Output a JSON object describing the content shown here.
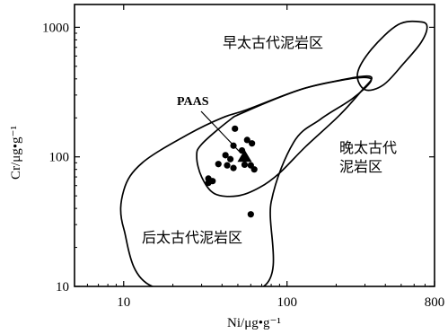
{
  "chart_data": {
    "type": "scatter",
    "xlabel": "Ni/μg•g⁻¹",
    "ylabel": "Cr/μg•g⁻¹",
    "x_scale": "log",
    "y_scale": "log",
    "xlim": [
      5,
      800
    ],
    "ylim": [
      10,
      1500
    ],
    "x_ticks": [
      10,
      100,
      800
    ],
    "x_tick_labels": [
      "10",
      "100",
      "800"
    ],
    "y_ticks": [
      10,
      100,
      1000
    ],
    "y_tick_labels": [
      "10",
      "100",
      "1000"
    ],
    "grid": false,
    "series": [
      {
        "marker": "circle",
        "points": [
          [
            48,
            165
          ],
          [
            57,
            135
          ],
          [
            61,
            127
          ],
          [
            47,
            122
          ],
          [
            53,
            112
          ],
          [
            42,
            103
          ],
          [
            45,
            96
          ],
          [
            38,
            88
          ],
          [
            43,
            86
          ],
          [
            47,
            82
          ],
          [
            55,
            87
          ],
          [
            60,
            86
          ],
          [
            63,
            80
          ],
          [
            33,
            68
          ],
          [
            35,
            65
          ],
          [
            33,
            63
          ],
          [
            60,
            36
          ]
        ]
      },
      {
        "name": "PAAS",
        "marker": "triangle",
        "points": [
          [
            55,
            100
          ]
        ]
      }
    ],
    "annotations": [
      {
        "text": "PAAS",
        "target": [
          55,
          100
        ]
      }
    ],
    "regions": [
      {
        "label": "早太古代泥岩区",
        "polygon": [
          [
            480,
            1050
          ],
          [
            660,
            1100
          ],
          [
            720,
            1000
          ],
          [
            660,
            760
          ],
          [
            520,
            530
          ],
          [
            390,
            360
          ],
          [
            300,
            330
          ],
          [
            270,
            440
          ],
          [
            330,
            680
          ]
        ]
      },
      {
        "label": "晚太古代泥岩区",
        "polygon": [
          [
            30,
            125
          ],
          [
            44,
            190
          ],
          [
            54,
            220
          ],
          [
            120,
            330
          ],
          [
            210,
            390
          ],
          [
            300,
            420
          ],
          [
            330,
            400
          ],
          [
            290,
            330
          ],
          [
            210,
            210
          ],
          [
            130,
            120
          ],
          [
            90,
            75
          ],
          [
            68,
            58
          ],
          [
            50,
            50
          ],
          [
            36,
            52
          ],
          [
            30,
            70
          ],
          [
            28,
            100
          ]
        ]
      },
      {
        "label": "后太古代泥岩区",
        "polygon": [
          [
            15,
            10
          ],
          [
            10,
            28
          ],
          [
            10,
            55
          ],
          [
            13,
            90
          ],
          [
            25,
            150
          ],
          [
            40,
            200
          ],
          [
            56,
            230
          ],
          [
            120,
            330
          ],
          [
            215,
            390
          ],
          [
            300,
            410
          ],
          [
            325,
            380
          ],
          [
            250,
            280
          ],
          [
            160,
            195
          ],
          [
            110,
            130
          ],
          [
            80,
            45
          ],
          [
            72,
            10
          ]
        ]
      }
    ]
  }
}
